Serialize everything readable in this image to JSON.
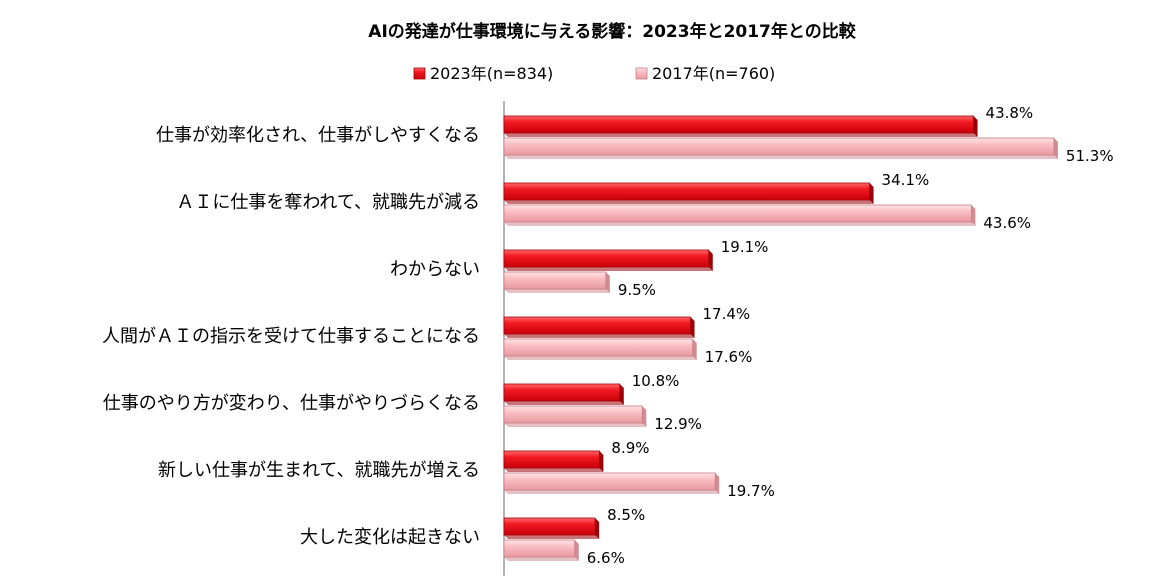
{
  "chart_data": {
    "type": "bar",
    "orientation": "horizontal",
    "title": "AIの発達が仕事環境に与える影響：2023年と2017年との比較",
    "xlabel": "",
    "ylabel": "",
    "xlim": [
      0,
      53
    ],
    "grid": false,
    "legend_position": "top",
    "categories": [
      "仕事が効率化され、仕事がしやすくなる",
      "ＡＩに仕事を奪われて、就職先が減る",
      "わからない",
      "人間がＡＩの指示を受けて仕事することになる",
      "仕事のやり方が変わり、仕事がやりづらくなる",
      "新しい仕事が生まれて、就職先が増える",
      "大した変化は起きない"
    ],
    "series": [
      {
        "name": "2023年(n=834)",
        "color": "#e8101a",
        "values": [
          43.8,
          34.1,
          19.1,
          17.4,
          10.8,
          8.9,
          8.5
        ],
        "labels": [
          "43.8%",
          "34.1%",
          "19.1%",
          "17.4%",
          "10.8%",
          "8.9%",
          "8.5%"
        ]
      },
      {
        "name": "2017年(n=760)",
        "color": "#f7b8bc",
        "values": [
          51.3,
          43.6,
          9.5,
          17.6,
          12.9,
          19.7,
          6.6
        ],
        "labels": [
          "51.3%",
          "43.6%",
          "9.5%",
          "17.6%",
          "12.9%",
          "19.7%",
          "6.6%"
        ]
      }
    ]
  }
}
